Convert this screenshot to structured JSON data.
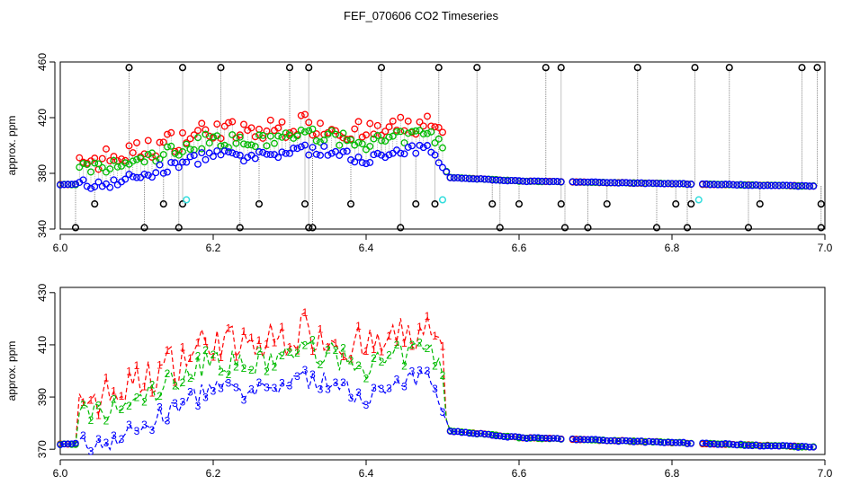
{
  "title": "FEF_070606  CO2 Timeseries",
  "colors": {
    "s1": "#ff0000",
    "s2": "#00bb00",
    "s3": "#0000ff",
    "flag": "#000000",
    "cyan": "#33dddd",
    "drop": "#888888"
  },
  "chart_data": [
    {
      "type": "scatter",
      "title": "FEF_070606  CO2 Timeseries",
      "ylabel": "approx. ppm",
      "xlim": [
        6.0,
        7.0
      ],
      "ylim": [
        340,
        460
      ],
      "xticks": [
        "6.0",
        "6.2",
        "6.4",
        "6.6",
        "6.8",
        "7.0"
      ],
      "yticks": [
        "340",
        "380",
        "420",
        "460"
      ],
      "grid": false,
      "spikes_high_x": [
        6.09,
        6.16,
        6.21,
        6.3,
        6.325,
        6.42,
        6.495,
        6.545,
        6.635,
        6.655,
        6.755,
        6.83,
        6.875,
        6.97,
        6.99
      ],
      "spikes_low_x": [
        6.02,
        6.11,
        6.155,
        6.235,
        6.325,
        6.33,
        6.445,
        6.575,
        6.66,
        6.69,
        6.78,
        6.82,
        6.9,
        6.995
      ],
      "spikes_mid_x": [
        6.045,
        6.135,
        6.16,
        6.26,
        6.32,
        6.38,
        6.465,
        6.49,
        6.565,
        6.6,
        6.655,
        6.715,
        6.805,
        6.825,
        6.915,
        6.995
      ],
      "flag_high_y": 456,
      "flag_low_y": 341,
      "flag_mid_y": 358,
      "cyan_points": [
        {
          "x": 6.165,
          "y": 361
        },
        {
          "x": 6.5,
          "y": 361
        },
        {
          "x": 6.835,
          "y": 361
        }
      ]
    },
    {
      "type": "line",
      "ylabel": "approx. ppm",
      "xlim": [
        6.0,
        7.0
      ],
      "ylim": [
        368,
        432
      ],
      "xticks": [
        "6.0",
        "6.2",
        "6.4",
        "6.6",
        "6.8",
        "7.0"
      ],
      "yticks": [
        "370",
        "390",
        "410",
        "430"
      ],
      "grid": false
    }
  ],
  "series_names": [
    "1",
    "2",
    "3"
  ]
}
